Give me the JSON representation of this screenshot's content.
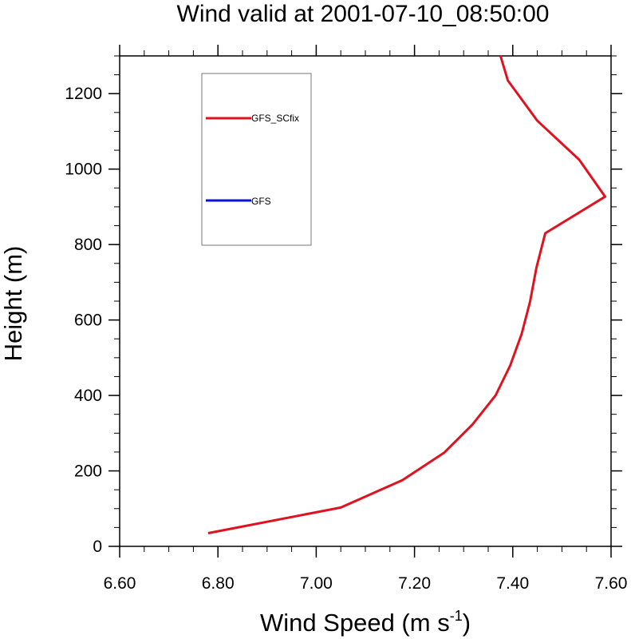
{
  "chart_data": {
    "type": "line",
    "title": "Wind valid at 2001-07-10_08:50:00",
    "xlabel": "Wind Speed (m s",
    "xlabel_superscript": "-1",
    "xlabel_suffix": ")",
    "ylabel": "Height (m)",
    "xlim": [
      6.6,
      7.6
    ],
    "ylim": [
      0,
      1300
    ],
    "x_ticks": [
      6.6,
      6.8,
      7.0,
      7.2,
      7.4,
      7.6
    ],
    "x_tick_labels": [
      "6.60",
      "6.80",
      "7.00",
      "7.20",
      "7.40",
      "7.60"
    ],
    "y_ticks": [
      0,
      200,
      400,
      600,
      800,
      1000,
      1200
    ],
    "y_tick_labels": [
      "0",
      "200",
      "400",
      "600",
      "800",
      "1000",
      "1200"
    ],
    "grid": false,
    "legend_position": "top-left",
    "series": [
      {
        "name": "GFS_SCfix",
        "color": "#e0121f",
        "points": [
          {
            "x": 6.78,
            "y": 35
          },
          {
            "x": 7.05,
            "y": 103
          },
          {
            "x": 7.175,
            "y": 175
          },
          {
            "x": 7.26,
            "y": 248
          },
          {
            "x": 7.318,
            "y": 323
          },
          {
            "x": 7.365,
            "y": 400
          },
          {
            "x": 7.395,
            "y": 480
          },
          {
            "x": 7.418,
            "y": 563
          },
          {
            "x": 7.435,
            "y": 648
          },
          {
            "x": 7.448,
            "y": 738
          },
          {
            "x": 7.466,
            "y": 830
          },
          {
            "x": 7.588,
            "y": 927
          },
          {
            "x": 7.535,
            "y": 1025
          },
          {
            "x": 7.45,
            "y": 1128
          },
          {
            "x": 7.39,
            "y": 1235
          },
          {
            "x": 7.375,
            "y": 1300
          }
        ]
      },
      {
        "name": "GFS",
        "color": "#0b12d8",
        "points": []
      }
    ]
  }
}
